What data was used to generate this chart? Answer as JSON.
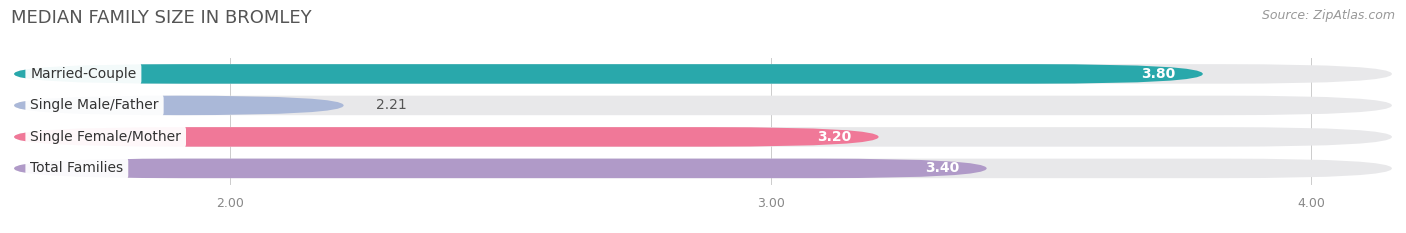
{
  "title": "MEDIAN FAMILY SIZE IN BROMLEY",
  "source": "Source: ZipAtlas.com",
  "categories": [
    "Married-Couple",
    "Single Male/Father",
    "Single Female/Mother",
    "Total Families"
  ],
  "values": [
    3.8,
    2.21,
    3.2,
    3.4
  ],
  "bar_colors": [
    "#29a8ab",
    "#aab8d8",
    "#f07898",
    "#b09ac8"
  ],
  "xlim_left": 1.6,
  "xlim_right": 4.15,
  "xticks": [
    2.0,
    3.0,
    4.0
  ],
  "xtick_labels": [
    "2.00",
    "3.00",
    "4.00"
  ],
  "bar_height": 0.62,
  "bar_gap": 0.38,
  "background_color": "#ffffff",
  "bar_bg_color": "#e8e8ea",
  "title_fontsize": 13,
  "source_fontsize": 9,
  "label_fontsize": 10,
  "value_fontsize": 10
}
